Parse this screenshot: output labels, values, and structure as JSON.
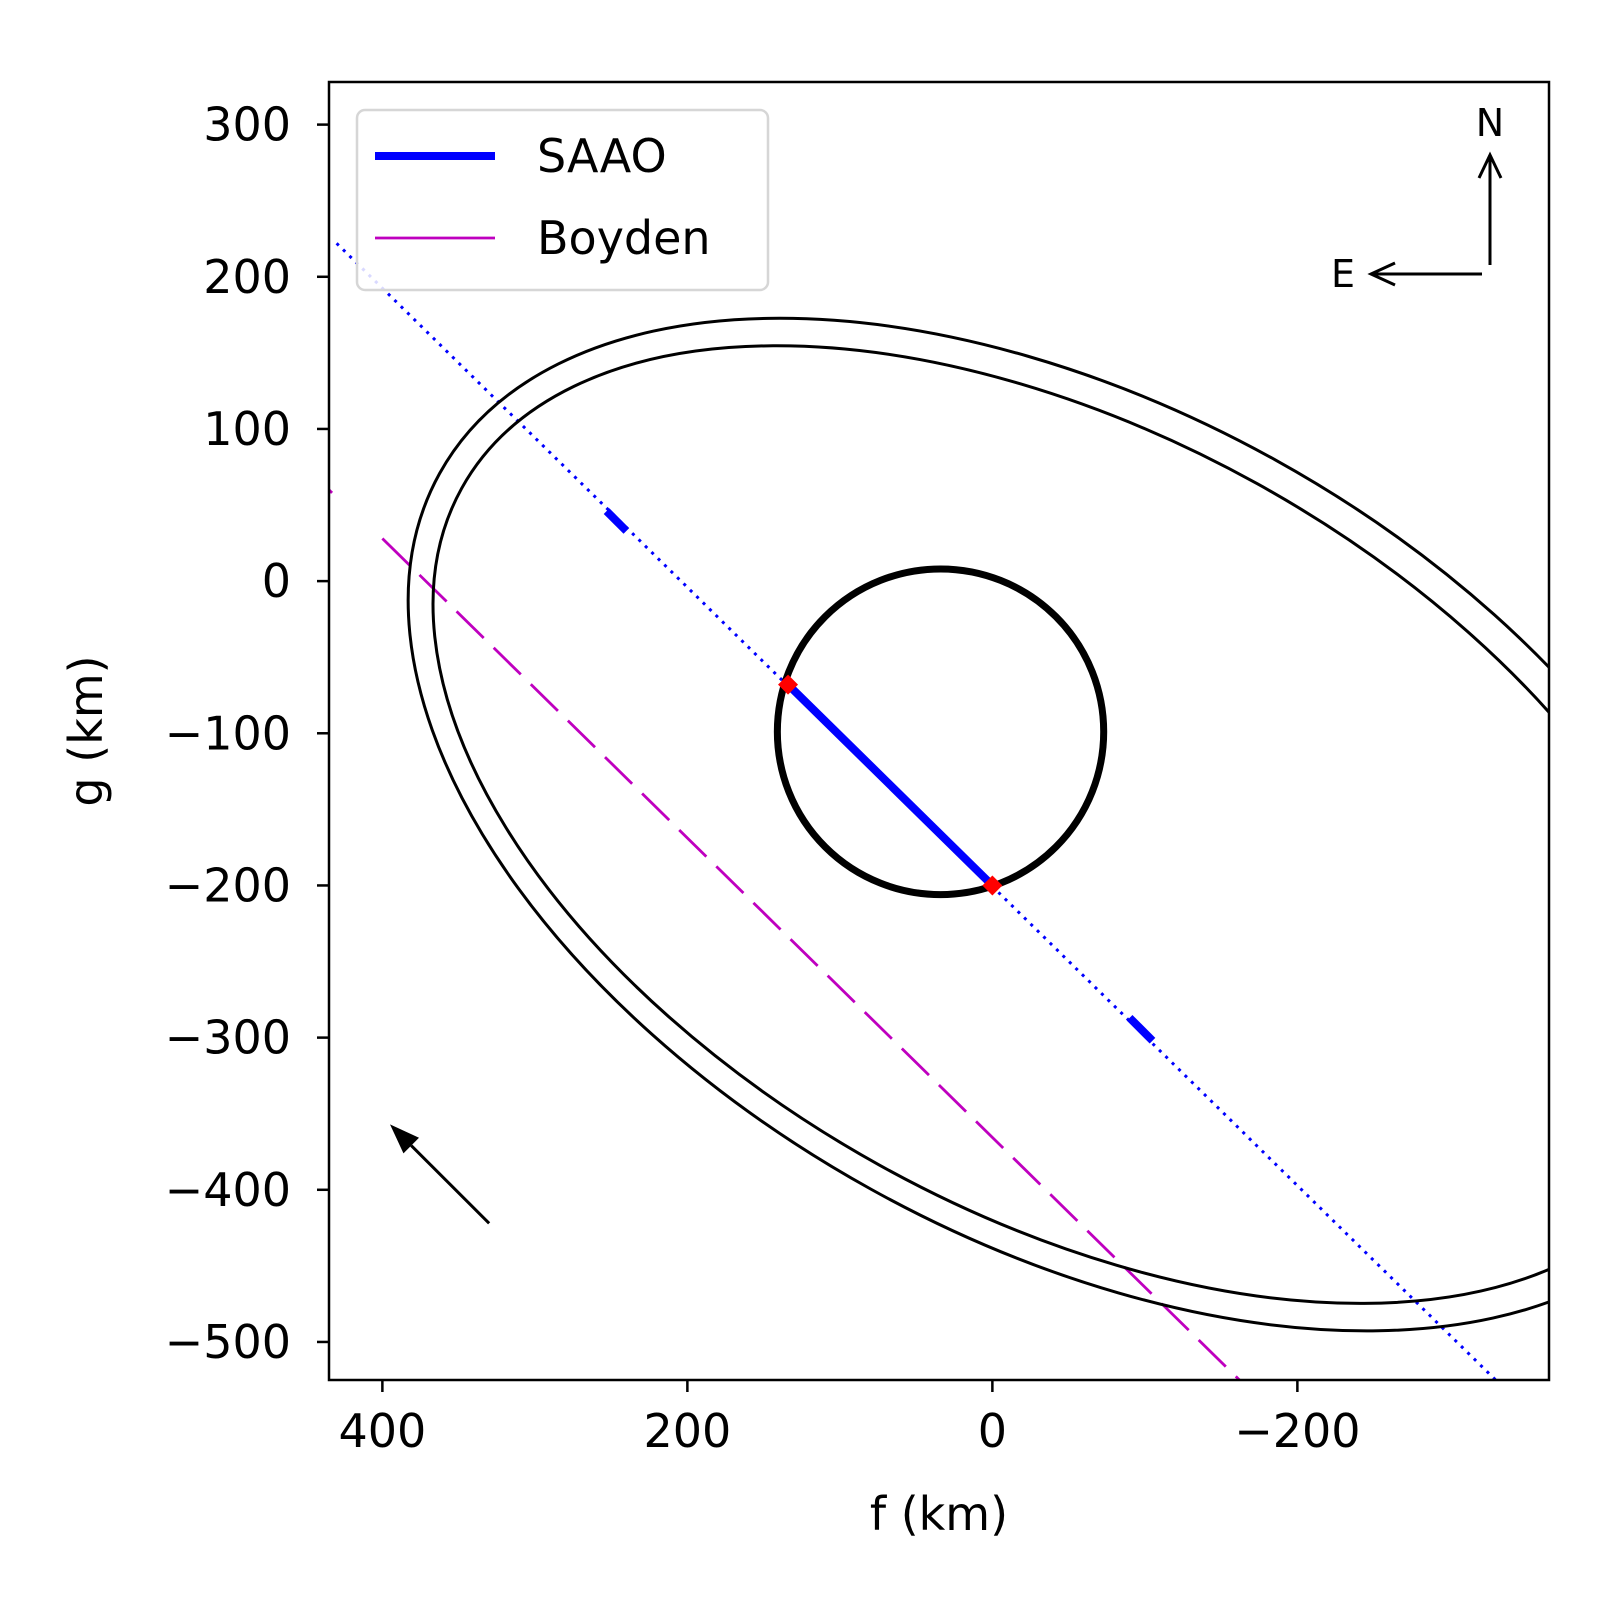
{
  "chart_data": {
    "type": "line",
    "title": "",
    "xlabel": "f (km)",
    "ylabel": "g (km)",
    "xlim": [
      435,
      -365
    ],
    "ylim": [
      -525,
      328
    ],
    "x_inverted": true,
    "xticks": [
      400,
      200,
      0,
      -200
    ],
    "yticks": [
      300,
      200,
      100,
      0,
      -100,
      -200,
      -300,
      -400,
      -500
    ],
    "xtick_labels": [
      "400",
      "200",
      "0",
      "−200"
    ],
    "ytick_labels": [
      "300",
      "200",
      "100",
      "0",
      "−100",
      "−200",
      "−300",
      "−400",
      "−500"
    ],
    "grid": false,
    "legend": {
      "placement": "top-left",
      "entries": [
        {
          "label": "SAAO",
          "color": "#0000ff",
          "style": "solid-thick"
        },
        {
          "label": "Boyden",
          "color": "#bf00bf",
          "style": "solid-thin"
        }
      ]
    },
    "series": [
      {
        "name": "SAAO",
        "color": "#0000ff",
        "chord": {
          "x": [
            134,
            0
          ],
          "y": [
            -68,
            -200
          ]
        },
        "track": {
          "x": [
            430,
            -330
          ],
          "y": [
            222,
            -525
          ]
        },
        "ring_segments": [
          {
            "x": [
              253,
              240
            ],
            "y": [
              46,
              33
            ]
          },
          {
            "x": [
              -90,
              -105
            ],
            "y": [
              -287,
              -302
            ]
          }
        ]
      },
      {
        "name": "Boyden",
        "color": "#bf00bf",
        "track": {
          "x": [
            400,
            -162
          ],
          "y": [
            28,
            -525
          ]
        },
        "stub": {
          "x": [
            435,
            433
          ],
          "y": [
            60,
            58
          ]
        }
      }
    ],
    "body": {
      "center": [
        34,
        -99
      ],
      "radius": 107,
      "color": "#000000"
    },
    "rings": [
      {
        "center": [
          -50,
          -160
        ],
        "semi_major": 455,
        "semi_minor": 256,
        "angle_deg": 29,
        "color": "#000000"
      },
      {
        "center": [
          -53,
          -160
        ],
        "semi_major": 475,
        "semi_minor": 274,
        "angle_deg": 29,
        "color": "#000000"
      }
    ],
    "contact_points": {
      "x": [
        134,
        0
      ],
      "y": [
        -68,
        -200
      ],
      "color": "#ff0000"
    },
    "motion_arrow": {
      "from": [
        330,
        -422
      ],
      "to": [
        395,
        -357
      ],
      "color": "#000000"
    },
    "compass": {
      "north_label": "N",
      "east_label": "E",
      "color": "#000000"
    }
  }
}
